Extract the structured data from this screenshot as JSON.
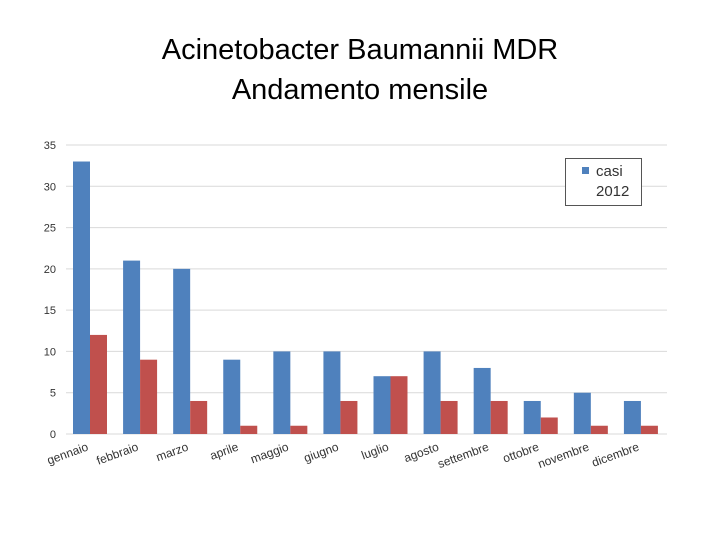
{
  "title": {
    "line1": "Acinetobacter Baumannii MDR",
    "line2": "Andamento mensile"
  },
  "legend": {
    "label": "casi 2012"
  },
  "colors": {
    "series_a": "#4F81BD",
    "series_b": "#C0504D",
    "grid": "#d9d9d9",
    "axis_text": "#333333"
  },
  "chart_data": {
    "type": "bar",
    "categories": [
      "gennaio",
      "febbraio",
      "marzo",
      "aprile",
      "maggio",
      "giugno",
      "luglio",
      "agosto",
      "settembre",
      "ottobre",
      "novembre",
      "dicembre"
    ],
    "series": [
      {
        "name": "casi 2012",
        "values": [
          33,
          21,
          20,
          9,
          10,
          10,
          7,
          10,
          8,
          4,
          5,
          4
        ]
      },
      {
        "values": [
          12,
          9,
          4,
          1,
          1,
          4,
          7,
          4,
          4,
          2,
          1,
          1
        ]
      }
    ],
    "ylim": [
      0,
      35
    ],
    "yticks": [
      0,
      5,
      10,
      15,
      20,
      25,
      30,
      35
    ],
    "grid": true,
    "legend_position": "top-right",
    "xlabel": "",
    "ylabel": ""
  }
}
